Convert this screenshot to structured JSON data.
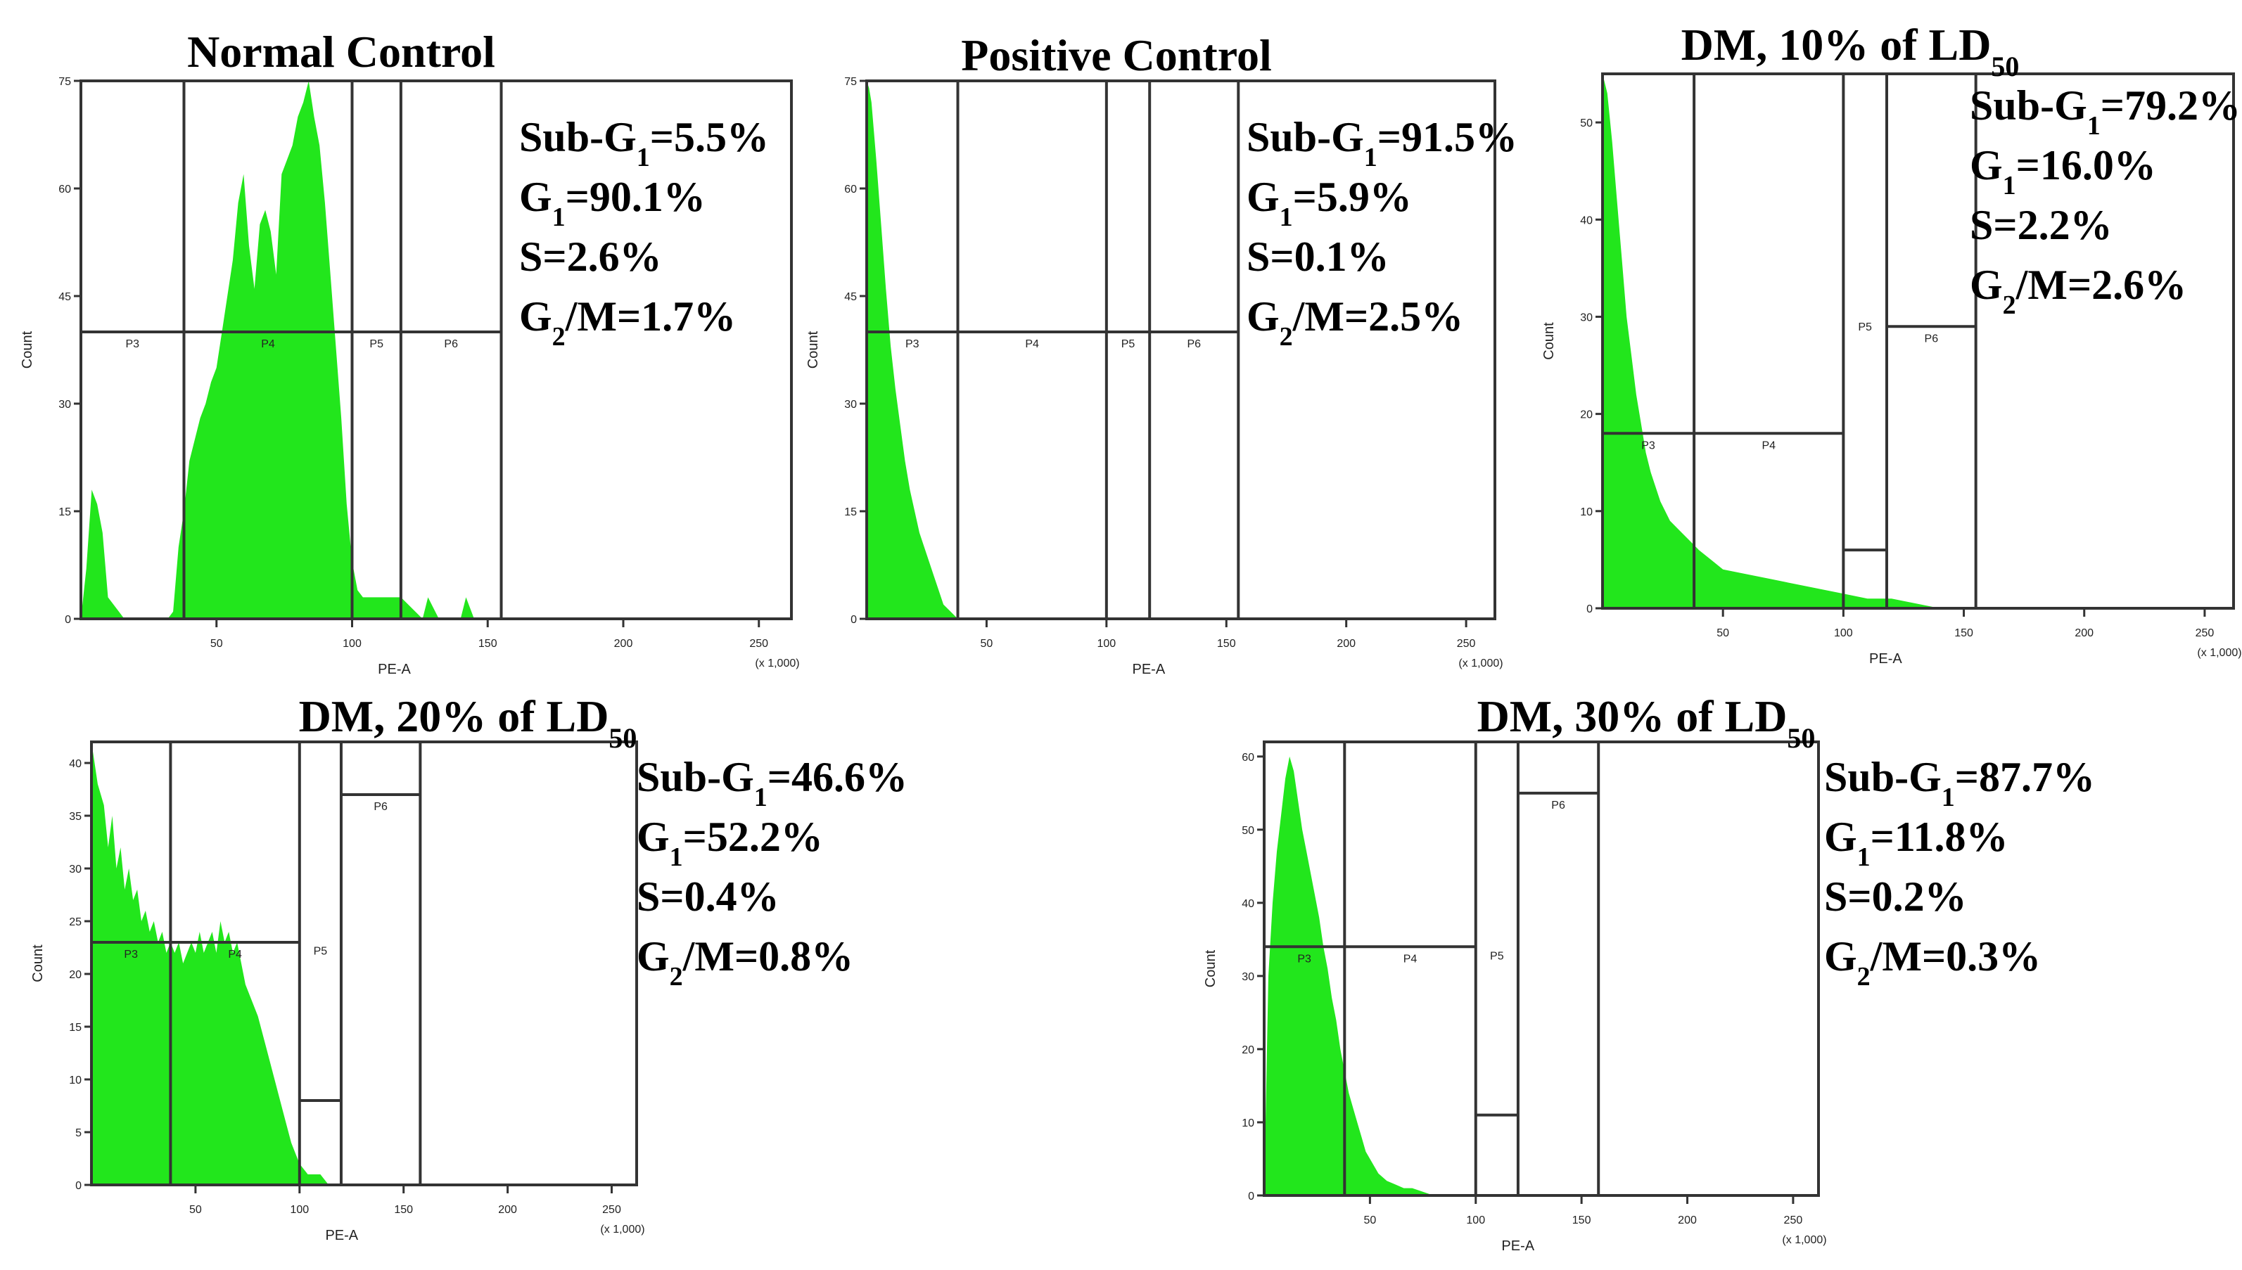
{
  "chart_data": [
    {
      "type": "area",
      "title": "Normal Control",
      "xlabel": "PE-A",
      "ylabel": "Count",
      "x_unit": "(x 1,000)",
      "xlim": [
        0,
        262
      ],
      "ylim": [
        0,
        75
      ],
      "xticks": [
        50,
        100,
        150,
        200,
        250
      ],
      "yticks": [
        0,
        15,
        30,
        45,
        60,
        75
      ],
      "grid": false,
      "gates": [
        {
          "name": "P3",
          "x0": 0,
          "x1": 38,
          "y": 40
        },
        {
          "name": "P4",
          "x0": 38,
          "x1": 100,
          "y": 40
        },
        {
          "name": "P5",
          "x0": 100,
          "x1": 118,
          "y": 40
        },
        {
          "name": "P6",
          "x0": 118,
          "x1": 155,
          "y": 40
        }
      ],
      "stats": [
        {
          "label": "Sub-G",
          "sub": "1",
          "value": "=5.5%"
        },
        {
          "label": "G",
          "sub": "1",
          "value": "=90.1%"
        },
        {
          "label": "S",
          "sub": "",
          "value": "=2.6%"
        },
        {
          "label": "G",
          "sub": "2",
          "value": "/M=1.7%"
        }
      ],
      "series": [
        {
          "x": [
            0,
            2,
            4,
            6,
            8,
            10,
            12,
            14,
            16,
            18,
            20,
            25,
            30,
            32,
            34,
            36,
            38,
            40,
            42,
            44,
            46,
            48,
            50,
            52,
            54,
            56,
            58,
            60,
            62,
            64,
            66,
            68,
            70,
            72,
            74,
            76,
            78,
            80,
            82,
            84,
            86,
            88,
            90,
            92,
            94,
            96,
            98,
            100,
            102,
            104,
            108,
            112,
            118,
            126,
            128,
            132,
            134,
            140,
            142,
            145,
            155
          ],
          "y": [
            0,
            7,
            18,
            16,
            12,
            3,
            2,
            1,
            0,
            0,
            0,
            0,
            0,
            0,
            1,
            10,
            15,
            22,
            25,
            28,
            30,
            33,
            35,
            40,
            45,
            50,
            58,
            62,
            52,
            46,
            55,
            57,
            54,
            48,
            62,
            64,
            66,
            70,
            72,
            75,
            70,
            66,
            58,
            48,
            38,
            28,
            16,
            8,
            4,
            3,
            3,
            3,
            3,
            0,
            3,
            0,
            0,
            0,
            3,
            0,
            0
          ]
        }
      ]
    },
    {
      "type": "area",
      "title": "Positive Control",
      "xlabel": "PE-A",
      "ylabel": "Count",
      "x_unit": "(x 1,000)",
      "xlim": [
        0,
        262
      ],
      "ylim": [
        0,
        75
      ],
      "xticks": [
        50,
        100,
        150,
        200,
        250
      ],
      "yticks": [
        0,
        15,
        30,
        45,
        60,
        75
      ],
      "grid": false,
      "gates": [
        {
          "name": "P3",
          "x0": 0,
          "x1": 38,
          "y": 40
        },
        {
          "name": "P4",
          "x0": 38,
          "x1": 100,
          "y": 40
        },
        {
          "name": "P5",
          "x0": 100,
          "x1": 118,
          "y": 40
        },
        {
          "name": "P6",
          "x0": 118,
          "x1": 155,
          "y": 40
        }
      ],
      "stats": [
        {
          "label": "Sub-G",
          "sub": "1",
          "value": "=91.5%"
        },
        {
          "label": "G",
          "sub": "1",
          "value": "=5.9%"
        },
        {
          "label": "S",
          "sub": "",
          "value": "=0.1%"
        },
        {
          "label": "G",
          "sub": "2",
          "value": "/M=2.5%"
        }
      ],
      "series": [
        {
          "x": [
            0,
            1,
            2,
            3,
            4,
            6,
            8,
            10,
            12,
            14,
            16,
            18,
            20,
            22,
            24,
            26,
            28,
            30,
            32,
            35,
            38
          ],
          "y": [
            75,
            74,
            72,
            68,
            64,
            55,
            46,
            38,
            32,
            27,
            22,
            18,
            15,
            12,
            10,
            8,
            6,
            4,
            2,
            1,
            0
          ]
        }
      ]
    },
    {
      "type": "area",
      "title": "DM, 10% of LD",
      "title_sub": "50",
      "xlabel": "PE-A",
      "ylabel": "Count",
      "x_unit": "(x 1,000)",
      "xlim": [
        0,
        262
      ],
      "ylim": [
        0,
        55
      ],
      "xticks": [
        50,
        100,
        150,
        200,
        250
      ],
      "yticks": [
        0,
        10,
        20,
        30,
        40,
        50
      ],
      "grid": false,
      "gates": [
        {
          "name": "P3",
          "x0": 0,
          "x1": 38,
          "y": 18
        },
        {
          "name": "P4",
          "x0": 38,
          "x1": 100,
          "y": 18
        },
        {
          "name": "P5",
          "x0": 100,
          "x1": 118,
          "y": 6
        },
        {
          "name": "P6",
          "x0": 118,
          "x1": 155,
          "y": 29
        }
      ],
      "stats": [
        {
          "label": "Sub-G",
          "sub": "1",
          "value": "=79.2%"
        },
        {
          "label": "G",
          "sub": "1",
          "value": "=16.0%"
        },
        {
          "label": "S",
          "sub": "",
          "value": "=2.2%"
        },
        {
          "label": "G",
          "sub": "2",
          "value": "/M=2.6%"
        }
      ],
      "series": [
        {
          "x": [
            0,
            2,
            4,
            6,
            8,
            10,
            12,
            14,
            16,
            18,
            20,
            24,
            28,
            32,
            36,
            40,
            45,
            50,
            60,
            70,
            80,
            90,
            100,
            110,
            120,
            130,
            140
          ],
          "y": [
            55,
            53,
            48,
            42,
            36,
            30,
            26,
            22,
            19,
            16,
            14,
            11,
            9,
            8,
            7,
            6,
            5,
            4,
            3.5,
            3,
            2.5,
            2,
            1.5,
            1,
            1,
            0.5,
            0
          ]
        }
      ]
    },
    {
      "type": "area",
      "title": "DM, 20% of LD",
      "title_sub": "50",
      "xlabel": "PE-A",
      "ylabel": "Count",
      "x_unit": "(x 1,000)",
      "xlim": [
        0,
        262
      ],
      "ylim": [
        0,
        42
      ],
      "xticks": [
        50,
        100,
        150,
        200,
        250
      ],
      "yticks": [
        0,
        5,
        10,
        15,
        20,
        25,
        30,
        35,
        40
      ],
      "grid": false,
      "gates": [
        {
          "name": "P3",
          "x0": 0,
          "x1": 38,
          "y": 23
        },
        {
          "name": "P4",
          "x0": 38,
          "x1": 100,
          "y": 23
        },
        {
          "name": "P5",
          "x0": 100,
          "x1": 120,
          "y": 8
        },
        {
          "name": "P6",
          "x0": 120,
          "x1": 158,
          "y": 37
        }
      ],
      "stats": [
        {
          "label": "Sub-G",
          "sub": "1",
          "value": "=46.6%"
        },
        {
          "label": "G",
          "sub": "1",
          "value": "=52.2%"
        },
        {
          "label": "S",
          "sub": "",
          "value": "=0.4%"
        },
        {
          "label": "G",
          "sub": "2",
          "value": "/M=0.8%"
        }
      ],
      "series": [
        {
          "x": [
            0,
            3,
            6,
            8,
            10,
            12,
            14,
            16,
            18,
            20,
            22,
            24,
            26,
            28,
            30,
            32,
            34,
            36,
            38,
            40,
            42,
            44,
            46,
            48,
            50,
            52,
            54,
            56,
            58,
            60,
            62,
            64,
            66,
            68,
            70,
            72,
            74,
            76,
            78,
            80,
            84,
            88,
            92,
            96,
            100,
            104,
            110,
            114,
            118
          ],
          "y": [
            42,
            38,
            36,
            32,
            35,
            30,
            32,
            28,
            30,
            27,
            28,
            25,
            26,
            24,
            25,
            23,
            24,
            22,
            23,
            22,
            23,
            21,
            22,
            23,
            22,
            24,
            22,
            23,
            24,
            22,
            25,
            23,
            24,
            22,
            23,
            21,
            19,
            18,
            17,
            16,
            13,
            10,
            7,
            4,
            2,
            1,
            1,
            0,
            0
          ]
        }
      ]
    },
    {
      "type": "area",
      "title": "DM, 30% of LD",
      "title_sub": "50",
      "xlabel": "PE-A",
      "ylabel": "Count",
      "x_unit": "(x 1,000)",
      "xlim": [
        0,
        262
      ],
      "ylim": [
        0,
        62
      ],
      "xticks": [
        50,
        100,
        150,
        200,
        250
      ],
      "yticks": [
        0,
        10,
        20,
        30,
        40,
        50,
        60
      ],
      "grid": false,
      "gates": [
        {
          "name": "P3",
          "x0": 0,
          "x1": 38,
          "y": 34
        },
        {
          "name": "P4",
          "x0": 38,
          "x1": 100,
          "y": 34
        },
        {
          "name": "P5",
          "x0": 100,
          "x1": 120,
          "y": 11
        },
        {
          "name": "P6",
          "x0": 120,
          "x1": 158,
          "y": 55
        }
      ],
      "stats": [
        {
          "label": "Sub-G",
          "sub": "1",
          "value": "=87.7%"
        },
        {
          "label": "G",
          "sub": "1",
          "value": "=11.8%"
        },
        {
          "label": "S",
          "sub": "",
          "value": "=0.2%"
        },
        {
          "label": "G",
          "sub": "2",
          "value": "/M=0.3%"
        }
      ],
      "series": [
        {
          "x": [
            0,
            2,
            4,
            6,
            8,
            10,
            12,
            14,
            16,
            18,
            20,
            22,
            24,
            26,
            28,
            30,
            32,
            34,
            36,
            38,
            40,
            42,
            44,
            46,
            48,
            50,
            54,
            58,
            62,
            66,
            70,
            75,
            80
          ],
          "y": [
            0,
            30,
            40,
            47,
            52,
            57,
            60,
            58,
            54,
            50,
            47,
            44,
            41,
            38,
            34,
            31,
            27,
            24,
            20,
            17,
            14,
            12,
            10,
            8,
            6,
            5,
            3,
            2,
            1.5,
            1,
            1,
            0.5,
            0
          ]
        }
      ]
    }
  ]
}
